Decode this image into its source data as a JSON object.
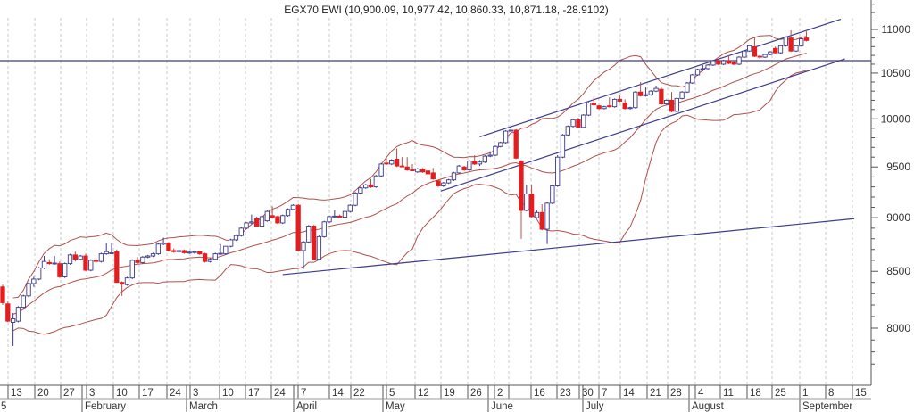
{
  "chart_data": {
    "type": "candlestick",
    "title": "EGX70 EWI (10,900.09, 10,977.42, 10,860.33, 10,871.18, -28.9102)",
    "yscale": "log",
    "ylim": [
      7700,
      11300
    ],
    "y_ticks": [
      8000,
      8500,
      9000,
      9500,
      10000,
      10500,
      11000
    ],
    "y_minor_step": 100,
    "x_tick_labels": [
      "13",
      "20",
      "27",
      "3",
      "10",
      "17",
      "24",
      "3",
      "10",
      "17",
      "24",
      "7",
      "14",
      "22",
      "5",
      "12",
      "19",
      "26",
      "2",
      "",
      "16",
      "23",
      "30",
      "7",
      "14",
      "21",
      "28",
      "4",
      "11",
      "18",
      "25",
      "1",
      "8",
      "15"
    ],
    "x_month_labels": [
      "5",
      "February",
      "March",
      "April",
      "May",
      "June",
      "July",
      "August",
      "September"
    ],
    "grid": {
      "vertical": true,
      "horizontal": false
    },
    "candles": [
      [
        8360,
        8380,
        8200,
        8220
      ],
      [
        8210,
        8230,
        8050,
        8060
      ],
      [
        8050,
        8130,
        7850,
        8080
      ],
      [
        8060,
        8190,
        8050,
        8180
      ],
      [
        8180,
        8290,
        8170,
        8280
      ],
      [
        8280,
        8400,
        8270,
        8390
      ],
      [
        8390,
        8450,
        8360,
        8430
      ],
      [
        8430,
        8540,
        8420,
        8530
      ],
      [
        8530,
        8640,
        8520,
        8590
      ],
      [
        8580,
        8610,
        8560,
        8570
      ],
      [
        8570,
        8640,
        8560,
        8575
      ],
      [
        8570,
        8590,
        8440,
        8450
      ],
      [
        8450,
        8580,
        8440,
        8570
      ],
      [
        8570,
        8660,
        8560,
        8650
      ],
      [
        8650,
        8680,
        8590,
        8610
      ],
      [
        8610,
        8650,
        8600,
        8640
      ],
      [
        8640,
        8660,
        8500,
        8510
      ],
      [
        8510,
        8610,
        8500,
        8600
      ],
      [
        8600,
        8620,
        8570,
        8590
      ],
      [
        8590,
        8670,
        8580,
        8660
      ],
      [
        8660,
        8760,
        8650,
        8680
      ],
      [
        8670,
        8760,
        8660,
        8670
      ],
      [
        8680,
        8700,
        8400,
        8400
      ],
      [
        8400,
        8410,
        8280,
        8385
      ],
      [
        8380,
        8450,
        8370,
        8440
      ],
      [
        8440,
        8610,
        8430,
        8600
      ],
      [
        8600,
        8630,
        8570,
        8580
      ],
      [
        8580,
        8640,
        8570,
        8630
      ],
      [
        8630,
        8650,
        8620,
        8640
      ],
      [
        8640,
        8670,
        8630,
        8660
      ],
      [
        8660,
        8760,
        8650,
        8750
      ],
      [
        8750,
        8810,
        8740,
        8760
      ],
      [
        8760,
        8770,
        8680,
        8690
      ],
      [
        8690,
        8710,
        8670,
        8680
      ],
      [
        8680,
        8700,
        8670,
        8690
      ],
      [
        8690,
        8700,
        8660,
        8670
      ],
      [
        8670,
        8690,
        8660,
        8675
      ],
      [
        8675,
        8690,
        8660,
        8680
      ],
      [
        8680,
        8690,
        8650,
        8660
      ],
      [
        8660,
        8670,
        8580,
        8590
      ],
      [
        8590,
        8620,
        8580,
        8610
      ],
      [
        8610,
        8670,
        8600,
        8660
      ],
      [
        8660,
        8750,
        8650,
        8665
      ],
      [
        8660,
        8730,
        8650,
        8730
      ],
      [
        8730,
        8800,
        8720,
        8790
      ],
      [
        8790,
        8840,
        8780,
        8830
      ],
      [
        8830,
        8910,
        8820,
        8900
      ],
      [
        8900,
        8960,
        8890,
        8950
      ],
      [
        8950,
        9030,
        8940,
        8960
      ],
      [
        8990,
        9010,
        8910,
        8920
      ],
      [
        8920,
        9030,
        8910,
        9010
      ],
      [
        8970,
        9070,
        8960,
        9060
      ],
      [
        9020,
        9110,
        8990,
        9000
      ],
      [
        9010,
        9020,
        8940,
        8950
      ],
      [
        8950,
        9030,
        8940,
        9020
      ],
      [
        9020,
        9090,
        9010,
        9080
      ],
      [
        9080,
        9130,
        9070,
        9120
      ],
      [
        9120,
        9130,
        8680,
        8690
      ],
      [
        8690,
        8780,
        8520,
        8770
      ],
      [
        8770,
        8930,
        8760,
        8920
      ],
      [
        8920,
        8930,
        8600,
        8610
      ],
      [
        8610,
        8830,
        8600,
        8820
      ],
      [
        8820,
        8970,
        8810,
        8960
      ],
      [
        8960,
        9020,
        8950,
        9010
      ],
      [
        9010,
        9070,
        9000,
        9015
      ],
      [
        9015,
        9030,
        9000,
        9005
      ],
      [
        9005,
        9070,
        9000,
        9060
      ],
      [
        9060,
        9130,
        9050,
        9120
      ],
      [
        9120,
        9250,
        9110,
        9240
      ],
      [
        9240,
        9300,
        9230,
        9290
      ],
      [
        9290,
        9330,
        9280,
        9320
      ],
      [
        9320,
        9380,
        9290,
        9300
      ],
      [
        9300,
        9420,
        9290,
        9410
      ],
      [
        9410,
        9540,
        9400,
        9530
      ],
      [
        9540,
        9600,
        9520,
        9530
      ],
      [
        9530,
        9580,
        9520,
        9570
      ],
      [
        9580,
        9690,
        9500,
        9510
      ],
      [
        9510,
        9600,
        9500,
        9505
      ],
      [
        9500,
        9600,
        9460,
        9470
      ],
      [
        9470,
        9530,
        9460,
        9465
      ],
      [
        9450,
        9490,
        9440,
        9480
      ],
      [
        9480,
        9490,
        9440,
        9450
      ],
      [
        9460,
        9470,
        9420,
        9430
      ],
      [
        9440,
        9490,
        9370,
        9380
      ],
      [
        9360,
        9370,
        9300,
        9310
      ],
      [
        9310,
        9350,
        9300,
        9340
      ],
      [
        9340,
        9380,
        9330,
        9370
      ],
      [
        9370,
        9450,
        9360,
        9440
      ],
      [
        9440,
        9520,
        9430,
        9510
      ],
      [
        9500,
        9510,
        9460,
        9470
      ],
      [
        9470,
        9570,
        9460,
        9560
      ],
      [
        9560,
        9620,
        9520,
        9530
      ],
      [
        9530,
        9570,
        9510,
        9550
      ],
      [
        9550,
        9620,
        9540,
        9610
      ],
      [
        9610,
        9660,
        9600,
        9620
      ],
      [
        9620,
        9720,
        9610,
        9710
      ],
      [
        9710,
        9760,
        9700,
        9750
      ],
      [
        9750,
        9880,
        9740,
        9870
      ],
      [
        9870,
        9940,
        9860,
        9880
      ],
      [
        9880,
        9890,
        9580,
        9590
      ],
      [
        9560,
        9570,
        8800,
        9070
      ],
      [
        9070,
        9320,
        9060,
        9230
      ],
      [
        9230,
        9320,
        9000,
        9010
      ],
      [
        9000,
        9070,
        8990,
        9050
      ],
      [
        9050,
        9130,
        8880,
        8890
      ],
      [
        8890,
        9150,
        8750,
        9140
      ],
      [
        9140,
        9320,
        9130,
        9310
      ],
      [
        9310,
        9620,
        9300,
        9600
      ],
      [
        9600,
        9840,
        9590,
        9830
      ],
      [
        9830,
        9930,
        9820,
        9920
      ],
      [
        9920,
        10000,
        9910,
        9990
      ],
      [
        9990,
        10010,
        9900,
        9910
      ],
      [
        9910,
        10050,
        9900,
        10040
      ],
      [
        10040,
        10180,
        10030,
        10170
      ],
      [
        10170,
        10240,
        10140,
        10150
      ],
      [
        10140,
        10150,
        10100,
        10110
      ],
      [
        10110,
        10140,
        10100,
        10130
      ],
      [
        10140,
        10230,
        10120,
        10130
      ],
      [
        10130,
        10220,
        10120,
        10210
      ],
      [
        10210,
        10260,
        10180,
        10190
      ],
      [
        10170,
        10210,
        10100,
        10110
      ],
      [
        10110,
        10130,
        10100,
        10120
      ],
      [
        10120,
        10300,
        10110,
        10290
      ],
      [
        10290,
        10400,
        10240,
        10250
      ],
      [
        10250,
        10340,
        10240,
        10260
      ],
      [
        10260,
        10310,
        10250,
        10300
      ],
      [
        10300,
        10360,
        10290,
        10330
      ],
      [
        10320,
        10350,
        10150,
        10160
      ],
      [
        10160,
        10210,
        10150,
        10200
      ],
      [
        10200,
        10290,
        10070,
        10080
      ],
      [
        10080,
        10230,
        10070,
        10220
      ],
      [
        10220,
        10300,
        10210,
        10290
      ],
      [
        10290,
        10400,
        10280,
        10390
      ],
      [
        10390,
        10490,
        10380,
        10480
      ],
      [
        10480,
        10550,
        10470,
        10540
      ],
      [
        10540,
        10590,
        10520,
        10550
      ],
      [
        10550,
        10600,
        10540,
        10590
      ],
      [
        10590,
        10650,
        10580,
        10640
      ],
      [
        10640,
        10650,
        10590,
        10600
      ],
      [
        10600,
        10650,
        10590,
        10640
      ],
      [
        10640,
        10700,
        10600,
        10610
      ],
      [
        10620,
        10640,
        10590,
        10600
      ],
      [
        10600,
        10690,
        10590,
        10680
      ],
      [
        10680,
        10760,
        10670,
        10750
      ],
      [
        10750,
        10820,
        10740,
        10810
      ],
      [
        10800,
        10900,
        10680,
        10690
      ],
      [
        10690,
        10700,
        10660,
        10680
      ],
      [
        10680,
        10720,
        10670,
        10710
      ],
      [
        10710,
        10750,
        10700,
        10740
      ],
      [
        10780,
        10800,
        10720,
        10730
      ],
      [
        10730,
        10820,
        10720,
        10810
      ],
      [
        10810,
        10920,
        10800,
        10910
      ],
      [
        10900,
        10990,
        10740,
        10750
      ],
      [
        10750,
        10820,
        10740,
        10810
      ],
      [
        10810,
        10900,
        10800,
        10890
      ],
      [
        10900.09,
        10977.42,
        10860.33,
        10871.18
      ]
    ],
    "indicators": {
      "bollinger": {
        "period": 20,
        "stddev": 2
      }
    },
    "trendlines": [
      {
        "name": "upper-channel",
        "from": [
          92,
          9810
        ],
        "to": [
          161.6,
          11120
        ]
      },
      {
        "name": "lower-channel",
        "from": [
          84.5,
          9260
        ],
        "to": [
          162.4,
          10660
        ]
      },
      {
        "name": "long-support",
        "from": [
          54,
          8470
        ],
        "to": [
          164.2,
          8990
        ]
      }
    ],
    "horizontal_line": 10640,
    "colors": {
      "up_fill": "#ffffff",
      "up_stroke": "#3a3a8c",
      "down_fill": "#e41e1e",
      "down_wick": "#b0504a",
      "bands": "#b0504a",
      "trendline": "#3b3b8f",
      "grid": "#c8c8c8",
      "axis": "#555555"
    }
  }
}
